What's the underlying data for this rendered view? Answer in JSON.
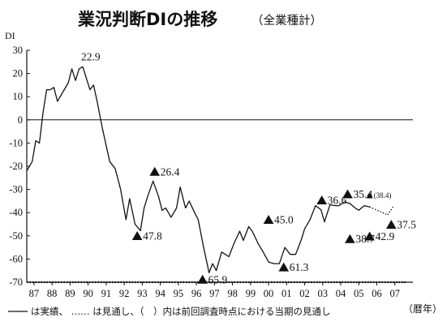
{
  "chart_data": {
    "type": "line",
    "title": "業況判断DIの推移",
    "subtitle": "（全業種計）",
    "ylabel": "DI",
    "xlabel_unit": "（暦年）",
    "ylim": [
      -70,
      30
    ],
    "xlim": [
      1986.6,
      2008.0
    ],
    "y_ticks": [
      30,
      20,
      10,
      0,
      -10,
      -20,
      -30,
      -40,
      -50,
      -60,
      -70
    ],
    "x_ticks": [
      {
        "year": 1987,
        "label": "87"
      },
      {
        "year": 1988,
        "label": "88"
      },
      {
        "year": 1989,
        "label": "89"
      },
      {
        "year": 1990,
        "label": "90"
      },
      {
        "year": 1991,
        "label": "91"
      },
      {
        "year": 1992,
        "label": "92"
      },
      {
        "year": 1993,
        "label": "93"
      },
      {
        "year": 1994,
        "label": "94"
      },
      {
        "year": 1995,
        "label": "95"
      },
      {
        "year": 1996,
        "label": "96"
      },
      {
        "year": 1997,
        "label": "97"
      },
      {
        "year": 1998,
        "label": "98"
      },
      {
        "year": 1999,
        "label": "99"
      },
      {
        "year": 2000,
        "label": "00"
      },
      {
        "year": 2001,
        "label": "01"
      },
      {
        "year": 2002,
        "label": "02"
      },
      {
        "year": 2003,
        "label": "03"
      },
      {
        "year": 2004,
        "label": "04"
      },
      {
        "year": 2005,
        "label": "05"
      },
      {
        "year": 2006,
        "label": "06"
      },
      {
        "year": 2007,
        "label": "07"
      }
    ],
    "grid": false,
    "zero_line": true,
    "series": [
      {
        "style": "solid",
        "points": [
          [
            1986.6,
            -22
          ],
          [
            1986.9,
            -18
          ],
          [
            1987.1,
            -9
          ],
          [
            1987.3,
            -10
          ],
          [
            1987.5,
            3
          ],
          [
            1987.7,
            13
          ],
          [
            1987.9,
            13
          ],
          [
            1988.1,
            14
          ],
          [
            1988.3,
            8
          ],
          [
            1988.6,
            12
          ],
          [
            1988.9,
            16
          ],
          [
            1989.1,
            22
          ],
          [
            1989.3,
            17
          ],
          [
            1989.5,
            22
          ],
          [
            1989.7,
            22.9
          ],
          [
            1989.9,
            18
          ],
          [
            1990.1,
            13
          ],
          [
            1990.3,
            15
          ],
          [
            1990.5,
            8
          ],
          [
            1990.8,
            -4
          ],
          [
            1991.2,
            -18
          ],
          [
            1991.5,
            -21
          ],
          [
            1991.8,
            -30
          ],
          [
            1992.1,
            -43
          ],
          [
            1992.3,
            -34
          ],
          [
            1992.6,
            -45
          ],
          [
            1992.9,
            -47.8
          ],
          [
            1993.1,
            -38
          ],
          [
            1993.3,
            -33
          ],
          [
            1993.6,
            -26.4
          ],
          [
            1993.9,
            -33
          ],
          [
            1994.1,
            -39
          ],
          [
            1994.3,
            -38
          ],
          [
            1994.6,
            -42
          ],
          [
            1994.9,
            -38
          ],
          [
            1995.1,
            -29
          ],
          [
            1995.4,
            -38
          ],
          [
            1995.6,
            -35
          ],
          [
            1995.9,
            -40
          ],
          [
            1996.1,
            -43
          ],
          [
            1996.4,
            -55
          ],
          [
            1996.7,
            -65.9
          ],
          [
            1996.9,
            -62
          ],
          [
            1997.1,
            -65
          ],
          [
            1997.4,
            -57
          ],
          [
            1997.6,
            -58
          ],
          [
            1997.8,
            -59
          ],
          [
            1998.1,
            -53
          ],
          [
            1998.4,
            -48
          ],
          [
            1998.6,
            -52
          ],
          [
            1998.9,
            -46
          ],
          [
            1999.1,
            -48
          ],
          [
            1999.4,
            -53
          ],
          [
            1999.7,
            -57
          ],
          [
            2000.0,
            -61.3
          ],
          [
            2000.3,
            -62
          ],
          [
            2000.6,
            -62
          ],
          [
            2000.9,
            -55
          ],
          [
            2001.2,
            -58
          ],
          [
            2001.5,
            -58
          ],
          [
            2001.8,
            -52
          ],
          [
            2002.0,
            -47
          ],
          [
            2002.3,
            -43
          ],
          [
            2002.6,
            -37
          ],
          [
            2002.9,
            -38.7
          ],
          [
            2003.1,
            -44
          ],
          [
            2003.4,
            -36.6
          ],
          [
            2003.7,
            -37
          ],
          [
            2003.9,
            -37
          ],
          [
            2004.2,
            -35.4
          ],
          [
            2004.5,
            -36
          ],
          [
            2004.8,
            -38
          ],
          [
            2005.0,
            -39
          ],
          [
            2005.3,
            -37
          ],
          [
            2005.6,
            -37.5
          ]
        ]
      },
      {
        "style": "dotted",
        "points": [
          [
            1986.6,
            -70
          ],
          [
            2007.6,
            -70
          ]
        ]
      }
    ],
    "annotations": [
      {
        "marker": false,
        "text": "22.9",
        "x": 1989.7,
        "y": 22.9
      },
      {
        "marker": true,
        "text": "26.4",
        "x": 1993.6,
        "y": -26.4
      },
      {
        "marker": true,
        "text": "47.8",
        "x": 1992.9,
        "y": -47.8
      },
      {
        "marker": true,
        "text": "65.9",
        "x": 1996.7,
        "y": -65.9
      },
      {
        "marker": true,
        "text": "45.0",
        "x": 2000.0,
        "y": -45.0
      },
      {
        "marker": true,
        "text": "61.3",
        "x": 2000.3,
        "y": -61.3
      },
      {
        "marker": true,
        "text": "36.6",
        "x": 2003.4,
        "y": -36.6
      },
      {
        "marker": true,
        "text": "35.4",
        "x": 2004.2,
        "y": -35.4
      },
      {
        "marker": true,
        "text": "38.4",
        "x": 2005.6,
        "y": -35.4,
        "small": true,
        "parens": true
      },
      {
        "marker": true,
        "text": "38.7",
        "x": 2004.6,
        "y": -50.5
      },
      {
        "marker": true,
        "text": "42.9",
        "x": 2005.6,
        "y": -49.0
      },
      {
        "marker": true,
        "text": "37.5",
        "x": 2006.8,
        "y": -44.0
      }
    ]
  },
  "legend": {
    "text": "は実績、 …… は見通し、（　）内は前回調査時点における当期の見通し",
    "solid_sample_label": "——"
  },
  "colors": {
    "line": "#111111",
    "axis": "#111111",
    "background": "#ffffff"
  }
}
